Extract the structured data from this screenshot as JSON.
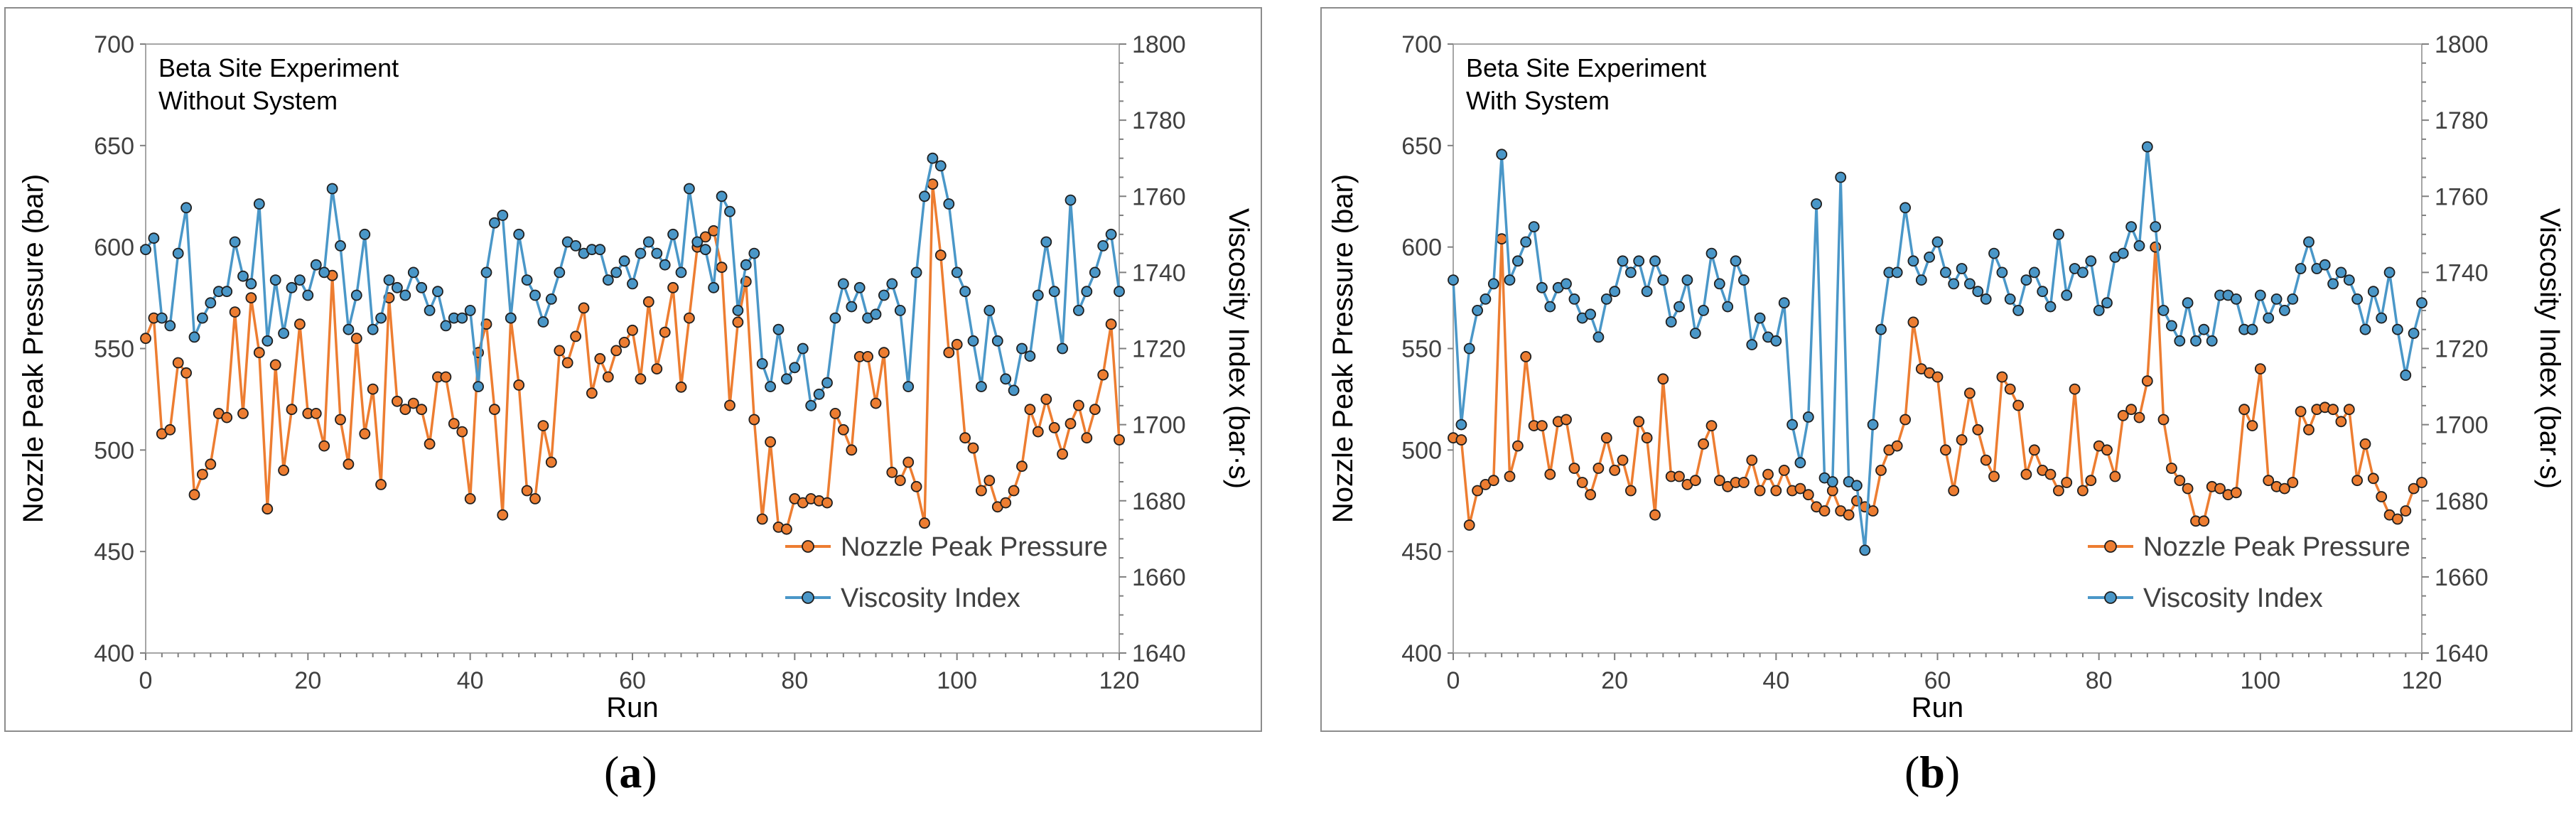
{
  "chart_data": [
    {
      "type": "line",
      "panel": "a",
      "annotation": [
        "Beta Site Experiment",
        "Without System"
      ],
      "xlabel": "Run",
      "ylabel_left": "Nozzle Peak Pressure (bar)",
      "ylabel_right": "Viscosity Index (bar·s)",
      "xlim": [
        0,
        120
      ],
      "ylim_left": [
        400,
        700
      ],
      "ylim_right": [
        1640,
        1800
      ],
      "xticks": [
        "0",
        "20",
        "40",
        "60",
        "80",
        "100",
        "120"
      ],
      "yticks_left": [
        "400",
        "450",
        "500",
        "550",
        "600",
        "650",
        "700"
      ],
      "yticks_right": [
        "1640",
        "1660",
        "1680",
        "1700",
        "1720",
        "1740",
        "1760",
        "1780",
        "1800"
      ],
      "legend_position": "bottom-right",
      "series": [
        {
          "name": "Nozzle Peak Pressure",
          "axis": "left",
          "color": "#ed7d31",
          "values": [
            555,
            565,
            508,
            510,
            543,
            538,
            478,
            488,
            493,
            518,
            516,
            568,
            518,
            575,
            548,
            471,
            542,
            490,
            520,
            562,
            518,
            518,
            502,
            586,
            515,
            493,
            555,
            508,
            530,
            483,
            575,
            524,
            520,
            523,
            520,
            503,
            536,
            536,
            513,
            509,
            476,
            548,
            562,
            520,
            468,
            565,
            532,
            480,
            476,
            512,
            494,
            549,
            543,
            556,
            570,
            528,
            545,
            536,
            549,
            553,
            559,
            535,
            573,
            540,
            558,
            580,
            531,
            565,
            600,
            605,
            608,
            590,
            522,
            563,
            583,
            515,
            466,
            504,
            462,
            461,
            476,
            474,
            476,
            475,
            474,
            518,
            510,
            500,
            546,
            546,
            523,
            548,
            489,
            485,
            494,
            482,
            464,
            631,
            596,
            548,
            552,
            506,
            501,
            480,
            485,
            472,
            474,
            480,
            492,
            520,
            509,
            525,
            511,
            498,
            513,
            522,
            506,
            520,
            537,
            562,
            505
          ]
        },
        {
          "name": "Viscosity Index",
          "axis": "right",
          "color": "#4a97c8",
          "values": [
            1746,
            1749,
            1728,
            1726,
            1745,
            1757,
            1723,
            1728,
            1732,
            1735,
            1735,
            1748,
            1739,
            1737,
            1758,
            1722,
            1738,
            1724,
            1736,
            1738,
            1734,
            1742,
            1740,
            1762,
            1747,
            1725,
            1734,
            1750,
            1725,
            1728,
            1738,
            1736,
            1734,
            1740,
            1736,
            1730,
            1735,
            1726,
            1728,
            1728,
            1730,
            1710,
            1740,
            1753,
            1755,
            1728,
            1750,
            1738,
            1734,
            1727,
            1733,
            1740,
            1748,
            1747,
            1745,
            1746,
            1746,
            1738,
            1740,
            1743,
            1737,
            1745,
            1748,
            1745,
            1742,
            1750,
            1740,
            1762,
            1748,
            1746,
            1736,
            1760,
            1756,
            1730,
            1742,
            1745,
            1716,
            1710,
            1725,
            1712,
            1715,
            1720,
            1705,
            1708,
            1711,
            1728,
            1737,
            1731,
            1736,
            1728,
            1729,
            1734,
            1737,
            1730,
            1710,
            1740,
            1760,
            1770,
            1768,
            1758,
            1740,
            1735,
            1722,
            1710,
            1730,
            1722,
            1712,
            1709,
            1720,
            1718,
            1734,
            1748,
            1735,
            1720,
            1759,
            1730,
            1735,
            1740,
            1747,
            1750,
            1735
          ]
        }
      ]
    },
    {
      "type": "line",
      "panel": "b",
      "annotation": [
        "Beta Site Experiment",
        "With System"
      ],
      "xlabel": "Run",
      "ylabel_left": "Nozzle Peak Pressure (bar)",
      "ylabel_right": "Viscosity Index (bar·s)",
      "xlim": [
        0,
        120
      ],
      "ylim_left": [
        400,
        700
      ],
      "ylim_right": [
        1640,
        1800
      ],
      "xticks": [
        "0",
        "20",
        "40",
        "60",
        "80",
        "100",
        "120"
      ],
      "yticks_left": [
        "400",
        "450",
        "500",
        "550",
        "600",
        "650",
        "700"
      ],
      "yticks_right": [
        "1640",
        "1660",
        "1680",
        "1700",
        "1720",
        "1740",
        "1760",
        "1780",
        "1800"
      ],
      "legend_position": "bottom-right",
      "series": [
        {
          "name": "Nozzle Peak Pressure",
          "axis": "left",
          "color": "#ed7d31",
          "values": [
            506,
            505,
            463,
            480,
            483,
            485,
            604,
            487,
            502,
            546,
            512,
            512,
            488,
            514,
            515,
            491,
            484,
            478,
            491,
            506,
            490,
            495,
            480,
            514,
            506,
            468,
            535,
            487,
            487,
            483,
            485,
            503,
            512,
            485,
            482,
            484,
            484,
            495,
            480,
            488,
            480,
            490,
            480,
            481,
            478,
            472,
            470,
            480,
            470,
            468,
            475,
            472,
            470,
            490,
            500,
            502,
            515,
            563,
            540,
            538,
            536,
            500,
            480,
            505,
            528,
            510,
            495,
            487,
            536,
            530,
            522,
            488,
            500,
            490,
            488,
            480,
            484,
            530,
            480,
            485,
            502,
            500,
            487,
            517,
            520,
            516,
            534,
            600,
            515,
            491,
            485,
            481,
            465,
            465,
            482,
            481,
            478,
            479,
            520,
            512,
            540,
            485,
            482,
            481,
            484,
            519,
            510,
            520,
            521,
            520,
            514,
            520,
            485,
            503,
            486,
            477,
            468,
            466,
            470,
            481,
            484
          ]
        },
        {
          "name": "Viscosity Index",
          "axis": "right",
          "color": "#4a97c8",
          "values": [
            1738,
            1700,
            1720,
            1730,
            1733,
            1737,
            1771,
            1738,
            1743,
            1748,
            1752,
            1736,
            1731,
            1736,
            1737,
            1733,
            1728,
            1729,
            1723,
            1733,
            1735,
            1743,
            1740,
            1743,
            1735,
            1743,
            1738,
            1727,
            1731,
            1738,
            1724,
            1730,
            1745,
            1737,
            1731,
            1743,
            1738,
            1721,
            1728,
            1723,
            1722,
            1732,
            1700,
            1690,
            1702,
            1758,
            1686,
            1685,
            1765,
            1685,
            1684,
            1667,
            1700,
            1725,
            1740,
            1740,
            1757,
            1743,
            1738,
            1744,
            1748,
            1740,
            1737,
            1741,
            1737,
            1735,
            1733,
            1745,
            1740,
            1733,
            1730,
            1738,
            1740,
            1735,
            1731,
            1750,
            1734,
            1741,
            1740,
            1743,
            1730,
            1732,
            1744,
            1745,
            1752,
            1747,
            1773,
            1752,
            1730,
            1726,
            1722,
            1732,
            1722,
            1725,
            1722,
            1734,
            1734,
            1733,
            1725,
            1725,
            1734,
            1728,
            1733,
            1730,
            1733,
            1741,
            1748,
            1741,
            1742,
            1737,
            1740,
            1738,
            1733,
            1725,
            1735,
            1728,
            1740,
            1725,
            1713,
            1724,
            1732
          ]
        }
      ]
    }
  ],
  "captions": [
    "(a)",
    "(b)"
  ]
}
